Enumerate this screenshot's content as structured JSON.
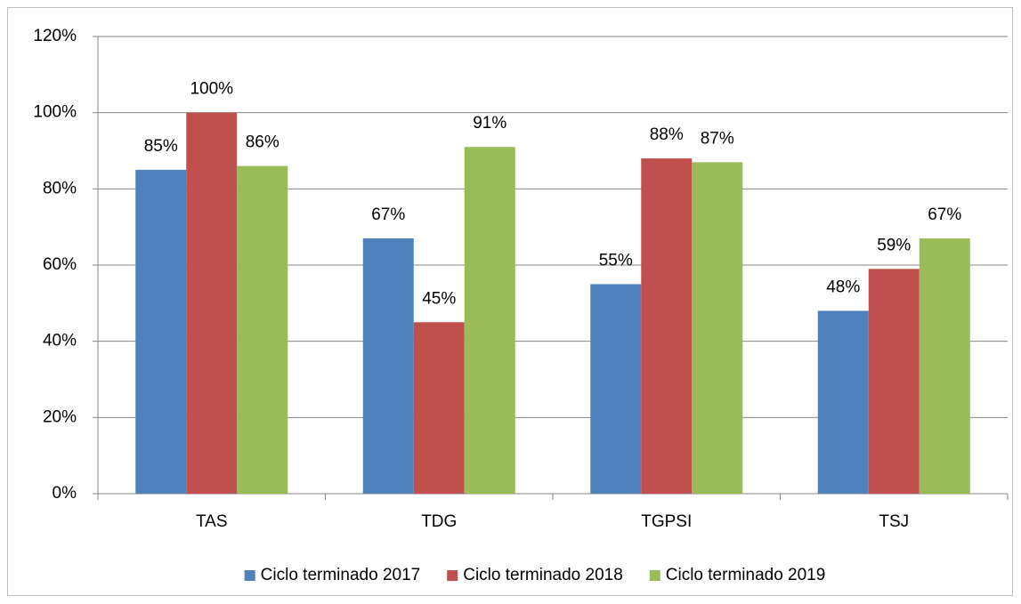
{
  "chart_data": {
    "type": "bar",
    "categories": [
      "TAS",
      "TDG",
      "TGPSI",
      "TSJ"
    ],
    "series": [
      {
        "name": "Ciclo terminado 2017",
        "color": "#4f81bd",
        "values": [
          85,
          67,
          55,
          48
        ],
        "value_labels": [
          "85%",
          "67%",
          "55%",
          "48%"
        ]
      },
      {
        "name": "Ciclo terminado 2018",
        "color": "#c0504d",
        "values": [
          100,
          45,
          88,
          59
        ],
        "value_labels": [
          "100%",
          "45%",
          "88%",
          "59%"
        ]
      },
      {
        "name": "Ciclo terminado 2019",
        "color": "#9bbb59",
        "values": [
          86,
          91,
          87,
          67
        ],
        "value_labels": [
          "86%",
          "91%",
          "87%",
          "67%"
        ]
      }
    ],
    "ylim": [
      0,
      120
    ],
    "yticks": [
      {
        "value": 0,
        "label": "0%"
      },
      {
        "value": 20,
        "label": "20%"
      },
      {
        "value": 40,
        "label": "40%"
      },
      {
        "value": 60,
        "label": "60%"
      },
      {
        "value": 80,
        "label": "80%"
      },
      {
        "value": 100,
        "label": "100%"
      },
      {
        "value": 120,
        "label": "120%"
      }
    ],
    "grid": true,
    "legend": "bottom"
  }
}
